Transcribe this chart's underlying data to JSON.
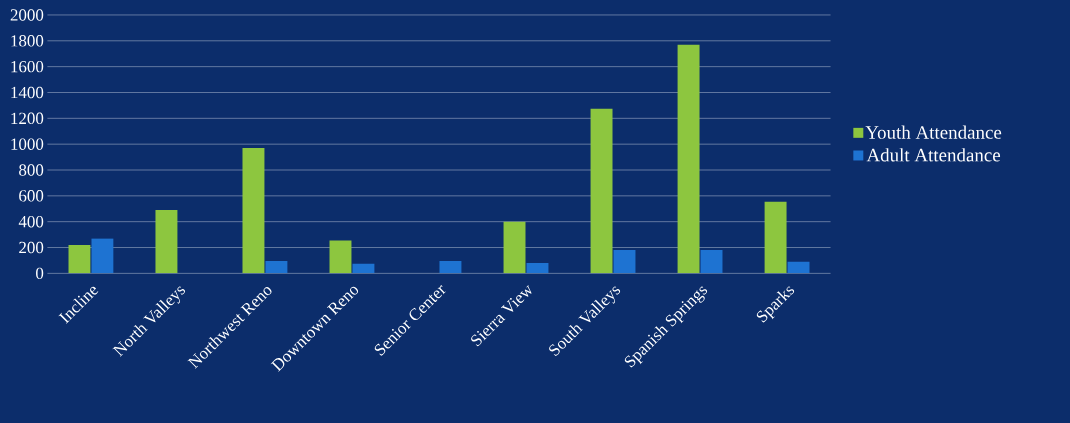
{
  "chart_data": {
    "type": "bar",
    "categories": [
      "Incline",
      "North Valleys",
      "Northwest Reno",
      "Downtown Reno",
      "Senior Center",
      "Sierra View",
      "South Valleys",
      "Spanish Springs",
      "Sparks"
    ],
    "series": [
      {
        "name": "Youth Attendance",
        "color": "#8dc63f",
        "values": [
          220,
          490,
          970,
          255,
          0,
          400,
          1275,
          1770,
          555
        ]
      },
      {
        "name": "Adult Attendance",
        "color": "#1e73d2",
        "values": [
          270,
          null,
          95,
          75,
          95,
          80,
          180,
          180,
          90
        ]
      }
    ],
    "ylim": [
      0,
      2000
    ],
    "yticks": [
      0,
      200,
      400,
      600,
      800,
      1000,
      1200,
      1400,
      1600,
      1800,
      2000
    ],
    "grid": "y",
    "legend": "right"
  }
}
